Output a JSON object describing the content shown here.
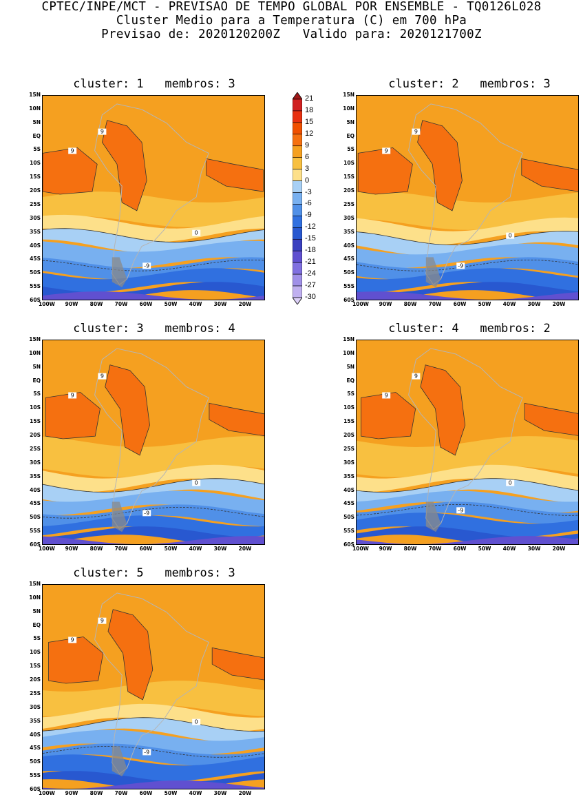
{
  "header": {
    "line1": "CPTEC/INPE/MCT - PREVISAO DE TEMPO GLOBAL POR ENSEMBLE - TQ0126L028",
    "line2": "Cluster Medio para a Temperatura (C) em 700 hPa",
    "line3": "Previsao de: 2020120200Z   Valido para: 2020121700Z"
  },
  "panels": [
    {
      "title": "cluster: 1   membros: 3"
    },
    {
      "title": "cluster: 2   membros: 3"
    },
    {
      "title": "cluster: 3   membros: 4"
    },
    {
      "title": "cluster: 4   membros: 2"
    },
    {
      "title": "cluster: 5   membros: 3"
    }
  ],
  "lat_ticks": [
    "15N",
    "10N",
    "5N",
    "EQ",
    "5S",
    "10S",
    "15S",
    "20S",
    "25S",
    "30S",
    "35S",
    "40S",
    "45S",
    "50S",
    "55S",
    "60S"
  ],
  "lon_ticks": [
    "100W",
    "90W",
    "80W",
    "70W",
    "60W",
    "50W",
    "40W",
    "30W",
    "20W"
  ],
  "contour_labels": [
    "9",
    "0",
    "-9"
  ],
  "colorbar": {
    "levels": [
      "21",
      "18",
      "15",
      "12",
      "9",
      "6",
      "3",
      "0",
      "-3",
      "-6",
      "-9",
      "-12",
      "-15",
      "-18",
      "-21",
      "-24",
      "-27",
      "-30"
    ],
    "colors": [
      "#a01818",
      "#d02020",
      "#e83010",
      "#f05000",
      "#f57010",
      "#f5a020",
      "#f8c040",
      "#fde08a",
      "#a8d0f5",
      "#78b0f0",
      "#5090e8",
      "#3070e0",
      "#2858d0",
      "#3a40c0",
      "#6050d0",
      "#8070e0",
      "#a090e8",
      "#c0b0f0",
      "#dcd0f8"
    ]
  }
}
